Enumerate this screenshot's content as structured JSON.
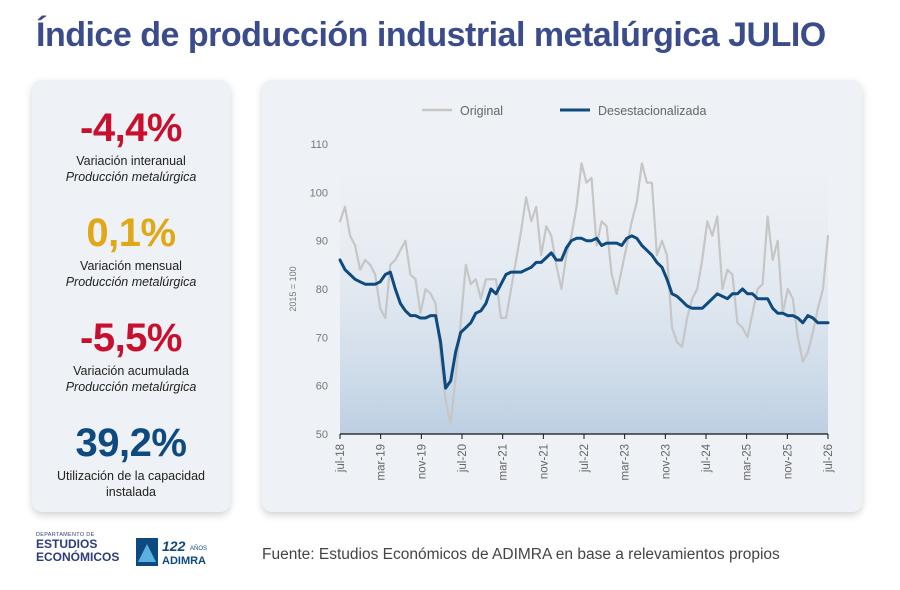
{
  "title": "Índice de producción industrial metalúrgica JULIO",
  "kpis": [
    {
      "value": "-4,4%",
      "label1": "Variación interanual",
      "label2": "Producción metalúrgica",
      "color": "#c8102e"
    },
    {
      "value": "0,1%",
      "label1": "Variación mensual",
      "label2": "Producción metalúrgica",
      "color": "#e0a717"
    },
    {
      "value": "-5,5%",
      "label1": "Variación acumulada",
      "label2": "Producción metalúrgica",
      "color": "#c8102e"
    },
    {
      "value": "39,2%",
      "label1": "Utilización de la capacidad instalada",
      "label2": "",
      "color": "#0e4a80"
    }
  ],
  "footer": {
    "dept_small": "DEPARTAMENTO DE",
    "dept_line1": "ESTUDIOS",
    "dept_line2": "ECONÓMICOS",
    "adimra_years": "122",
    "adimra_anos": "AÑOS",
    "adimra_name": "ADIMRA",
    "source": "Fuente: Estudios Económicos de ADIMRA en base a relevamientos propios"
  },
  "chart_data": {
    "type": "line",
    "ylabel": "2015 = 100",
    "ylim": [
      50,
      110
    ],
    "yticks": [
      50,
      60,
      70,
      80,
      90,
      100,
      110
    ],
    "xtick_labels": [
      "jul-18",
      "mar-19",
      "nov-19",
      "jul-20",
      "mar-21",
      "nov-21",
      "jul-22",
      "mar-23",
      "nov-23",
      "jul-24",
      "mar-25",
      "nov-25",
      "jul-26"
    ],
    "legend_position": "top",
    "series": [
      {
        "name": "Original",
        "color": "#c6c6c6",
        "values": [
          94,
          97,
          91,
          89,
          84,
          86,
          85,
          83,
          76,
          74,
          85,
          86,
          88,
          90,
          83,
          82,
          75,
          80,
          79,
          77,
          66,
          57,
          52,
          62,
          73,
          85,
          81,
          82,
          78,
          82,
          82,
          82,
          74,
          74,
          80,
          86,
          92,
          99,
          94,
          97,
          87,
          93,
          91,
          85,
          80,
          87,
          91,
          97,
          106,
          102,
          103,
          89,
          94,
          93,
          83,
          79,
          84,
          89,
          94,
          98,
          106,
          102,
          102,
          87,
          90,
          87,
          72,
          69,
          68,
          74,
          78,
          80,
          86,
          94,
          91,
          95,
          80,
          84,
          83,
          73,
          72,
          70,
          75,
          80,
          81,
          95,
          86,
          90,
          75,
          80,
          78,
          70,
          65,
          67,
          71,
          76,
          80,
          91
        ]
      },
      {
        "name": "Desestacionalizada",
        "color": "#0e4a80",
        "values": [
          86,
          84,
          83,
          82,
          81.5,
          81,
          81,
          81,
          81.5,
          83,
          83.5,
          80,
          77,
          75.5,
          74.5,
          74.5,
          74,
          74,
          74.5,
          74.5,
          69,
          59.5,
          61,
          67,
          71,
          72,
          73,
          75,
          75.5,
          77,
          80,
          79,
          81,
          83,
          83.5,
          83.5,
          83.5,
          84,
          84.5,
          85.5,
          85.5,
          86.5,
          87.5,
          86,
          86,
          88.5,
          90,
          90.5,
          90.5,
          90,
          90,
          90.5,
          89,
          89.5,
          89.5,
          89.5,
          89,
          90.5,
          91,
          90.5,
          89,
          88,
          87,
          85.5,
          84.5,
          82,
          79,
          78.5,
          77.5,
          76.5,
          76,
          76,
          76,
          77,
          78,
          79,
          78.5,
          78,
          79,
          79,
          80,
          79,
          79,
          78,
          78,
          78,
          76,
          75,
          75,
          74.5,
          74.5,
          74,
          73,
          74.5,
          74,
          73,
          73,
          73
        ]
      }
    ]
  }
}
